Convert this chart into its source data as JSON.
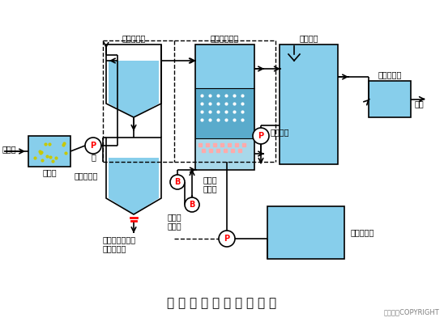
{
  "title": "生 物 滤 池 污 水 处 理 系 统",
  "copyright": "东方仿真COPYRIGHT",
  "bg_color": "#ffffff",
  "water_color": "#87CEEB",
  "water_color_dark": "#5aabcc",
  "line_color": "#000000",
  "labels": {
    "yuanwushui": "原污水",
    "chensha": "沉砂池",
    "beng": "泵",
    "chuci": "初次沉淀池",
    "ninong": "污泥浓缩池",
    "wunichuli": "污泥处理设备或\n系统外排放",
    "baoshen": "曝气生物滤池",
    "chulishui": "处理水池",
    "touyanghe": "投氧混合池",
    "fangliu": "放流",
    "fanchongkongyaji": "反冲用\n空压机",
    "baoqikongyaji": "曝气用\n空压机",
    "fanchongxishui": "反冲洗水",
    "fanchongxichi": "反冲洗水池"
  }
}
